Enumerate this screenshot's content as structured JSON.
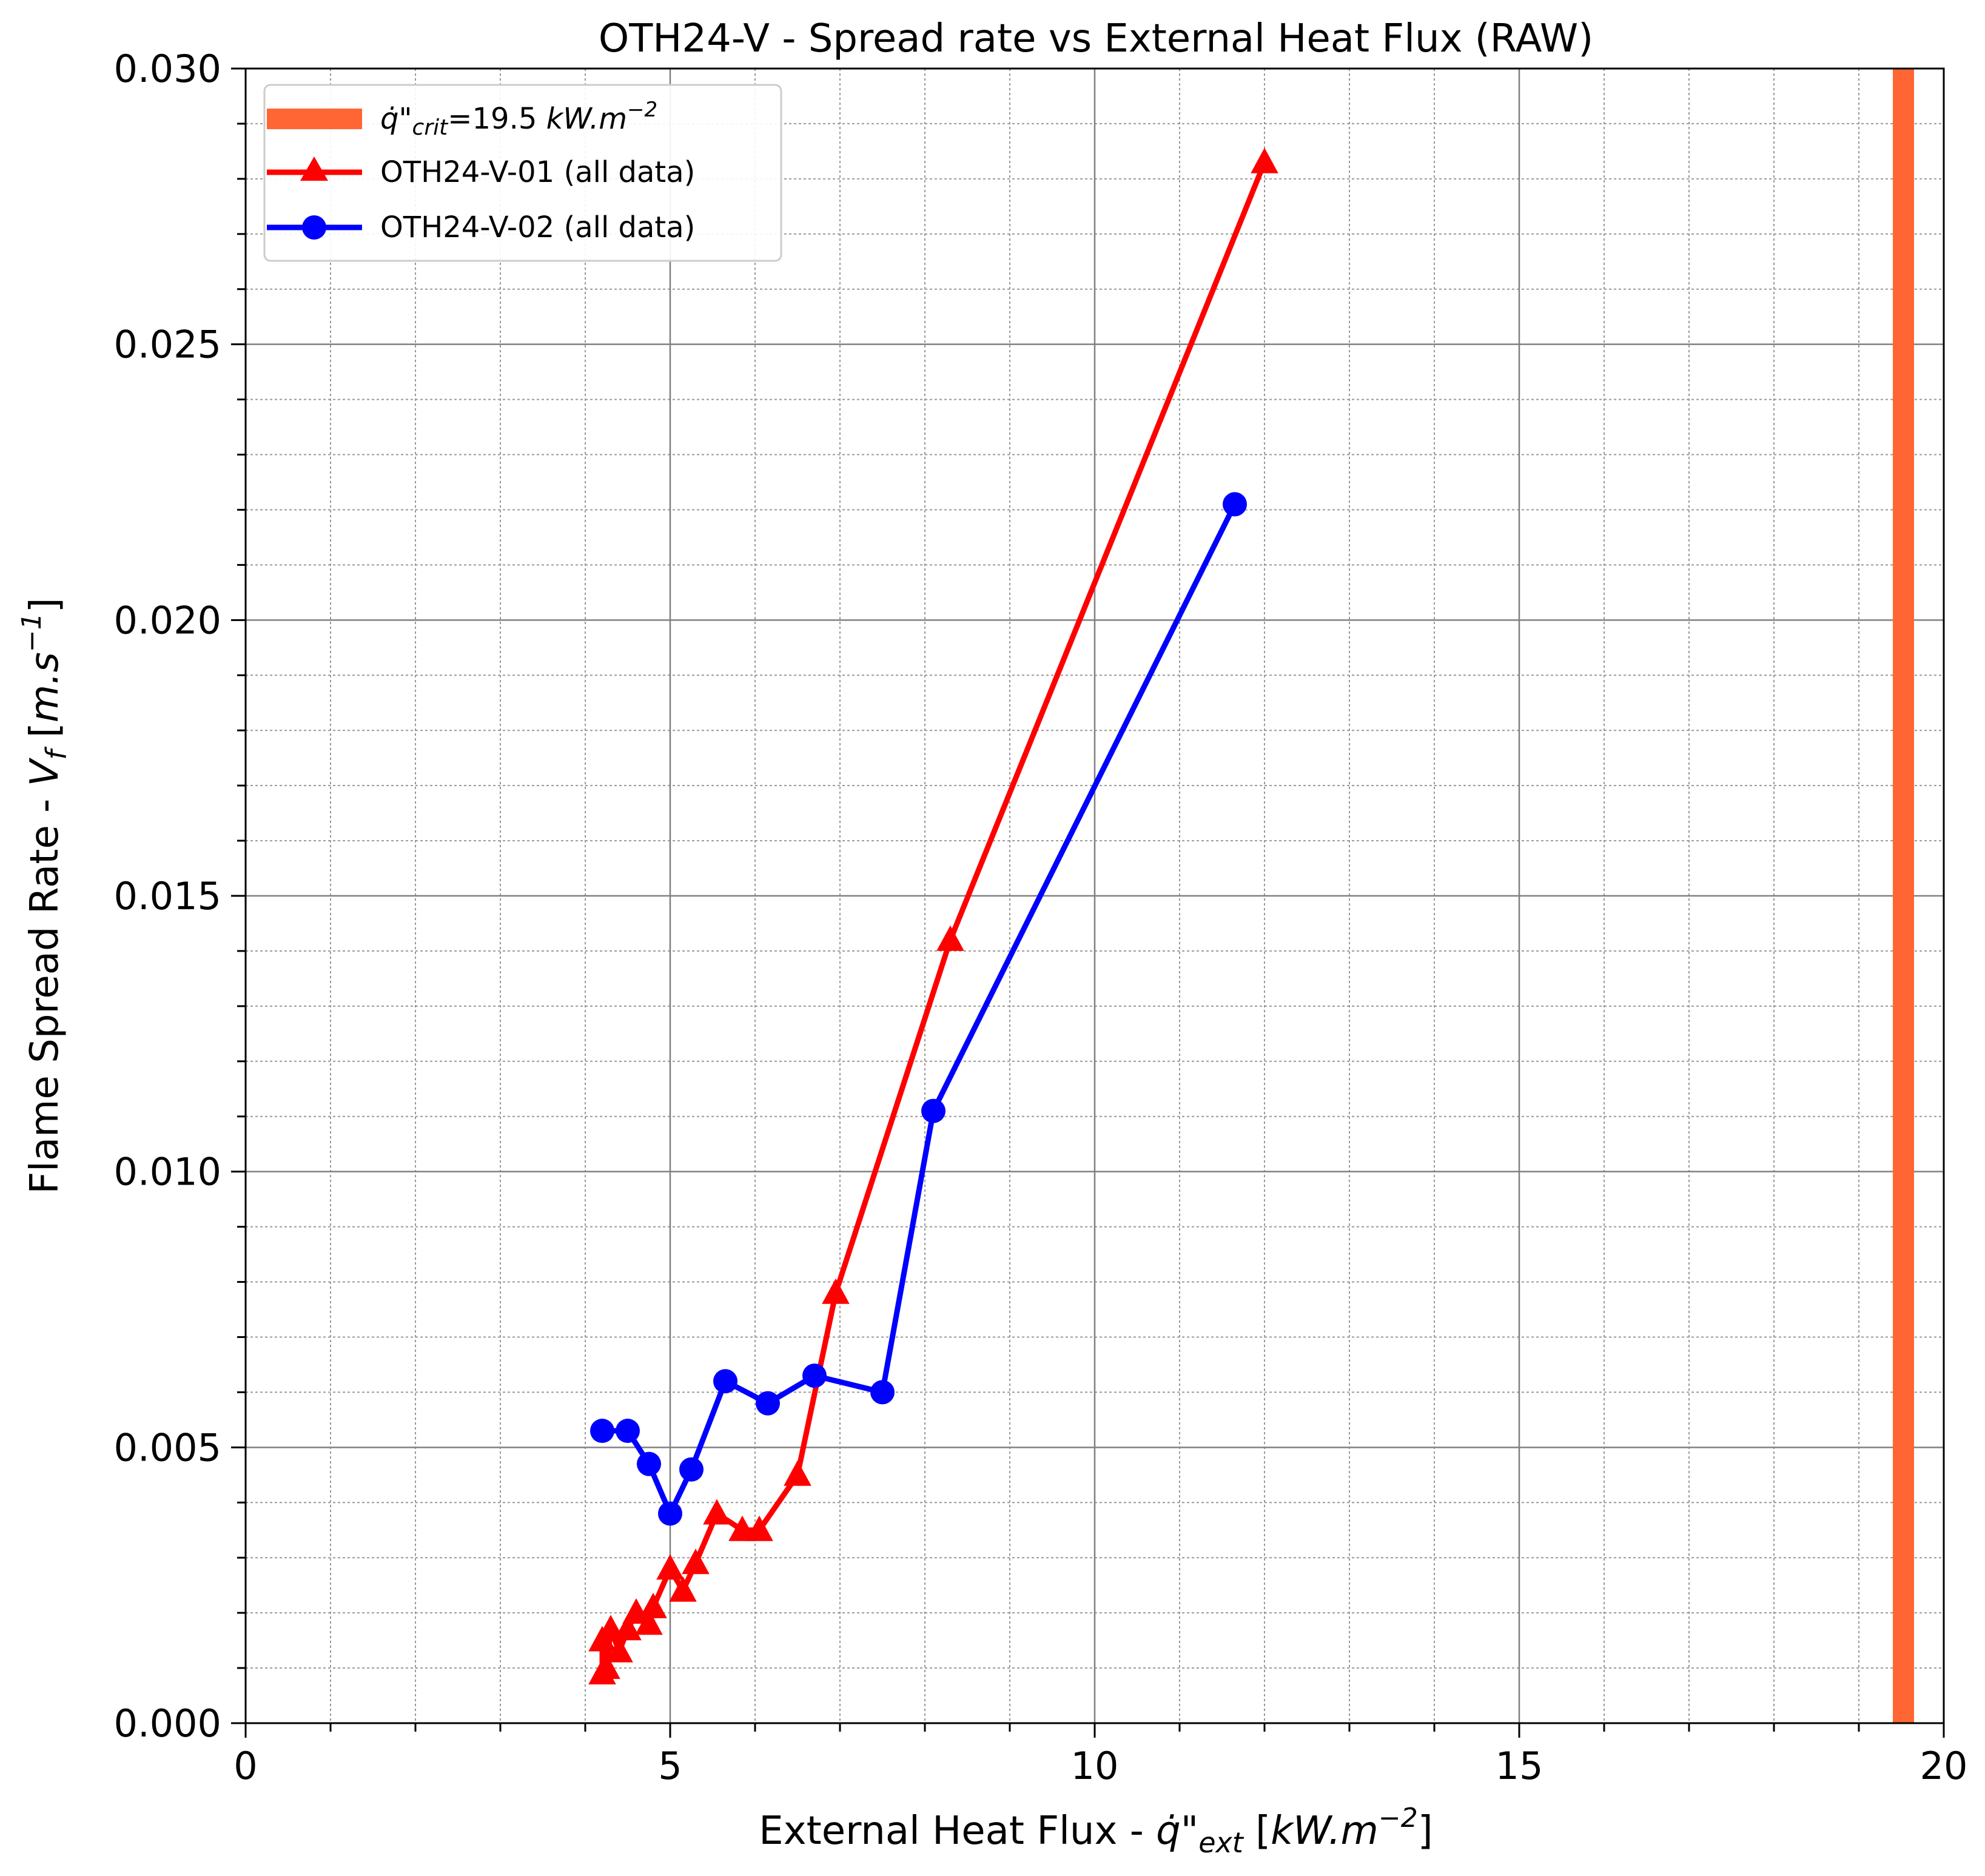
{
  "chart_data": {
    "type": "line",
    "title": "OTH24-V - Spread rate vs External Heat Flux (RAW)",
    "xlabel": "External Heat Flux - q̇\"ext [kW.m⁻²]",
    "ylabel": "Flame Spread Rate - Vf [m.s⁻¹]",
    "xlim": [
      0,
      20
    ],
    "ylim": [
      0,
      0.03
    ],
    "xticks": [
      0,
      5,
      10,
      15,
      20
    ],
    "xtick_labels": [
      "0",
      "5",
      "10",
      "15",
      "20"
    ],
    "yticks": [
      0,
      0.005,
      0.01,
      0.015,
      0.02,
      0.025,
      0.03
    ],
    "ytick_labels": [
      "0.000",
      "0.005",
      "0.010",
      "0.015",
      "0.020",
      "0.025",
      "0.030"
    ],
    "grid": true,
    "minor_grid": true,
    "legend_position": "top-left",
    "vertical_band": {
      "name": "q̇\"crit=19.5 kW.m⁻²",
      "x_from": 19.4,
      "x_to": 19.65,
      "color": "#ff6633"
    },
    "series": [
      {
        "name": "OTH24-V-01 (all data)",
        "color": "#ff0000",
        "marker": "triangle",
        "points": [
          [
            4.2,
            0.0009
          ],
          [
            4.2,
            0.0015
          ],
          [
            4.25,
            0.001
          ],
          [
            4.3,
            0.0017
          ],
          [
            4.4,
            0.0013
          ],
          [
            4.5,
            0.0017
          ],
          [
            4.6,
            0.002
          ],
          [
            4.75,
            0.0018
          ],
          [
            4.8,
            0.0021
          ],
          [
            5.0,
            0.0028
          ],
          [
            5.15,
            0.0024
          ],
          [
            5.3,
            0.0029
          ],
          [
            5.55,
            0.0038
          ],
          [
            5.85,
            0.0035
          ],
          [
            6.05,
            0.0035
          ],
          [
            6.5,
            0.0045
          ],
          [
            6.95,
            0.0078
          ],
          [
            8.3,
            0.0142
          ],
          [
            12.0,
            0.0283
          ]
        ]
      },
      {
        "name": "OTH24-V-02 (all data)",
        "color": "#0000ff",
        "marker": "circle",
        "points": [
          [
            4.2,
            0.0053
          ],
          [
            4.5,
            0.0053
          ],
          [
            4.75,
            0.0047
          ],
          [
            5.0,
            0.0038
          ],
          [
            5.25,
            0.0046
          ],
          [
            5.65,
            0.0062
          ],
          [
            6.15,
            0.0058
          ],
          [
            6.7,
            0.0063
          ],
          [
            7.5,
            0.006
          ],
          [
            8.1,
            0.0111
          ],
          [
            11.65,
            0.0221
          ]
        ]
      }
    ]
  }
}
